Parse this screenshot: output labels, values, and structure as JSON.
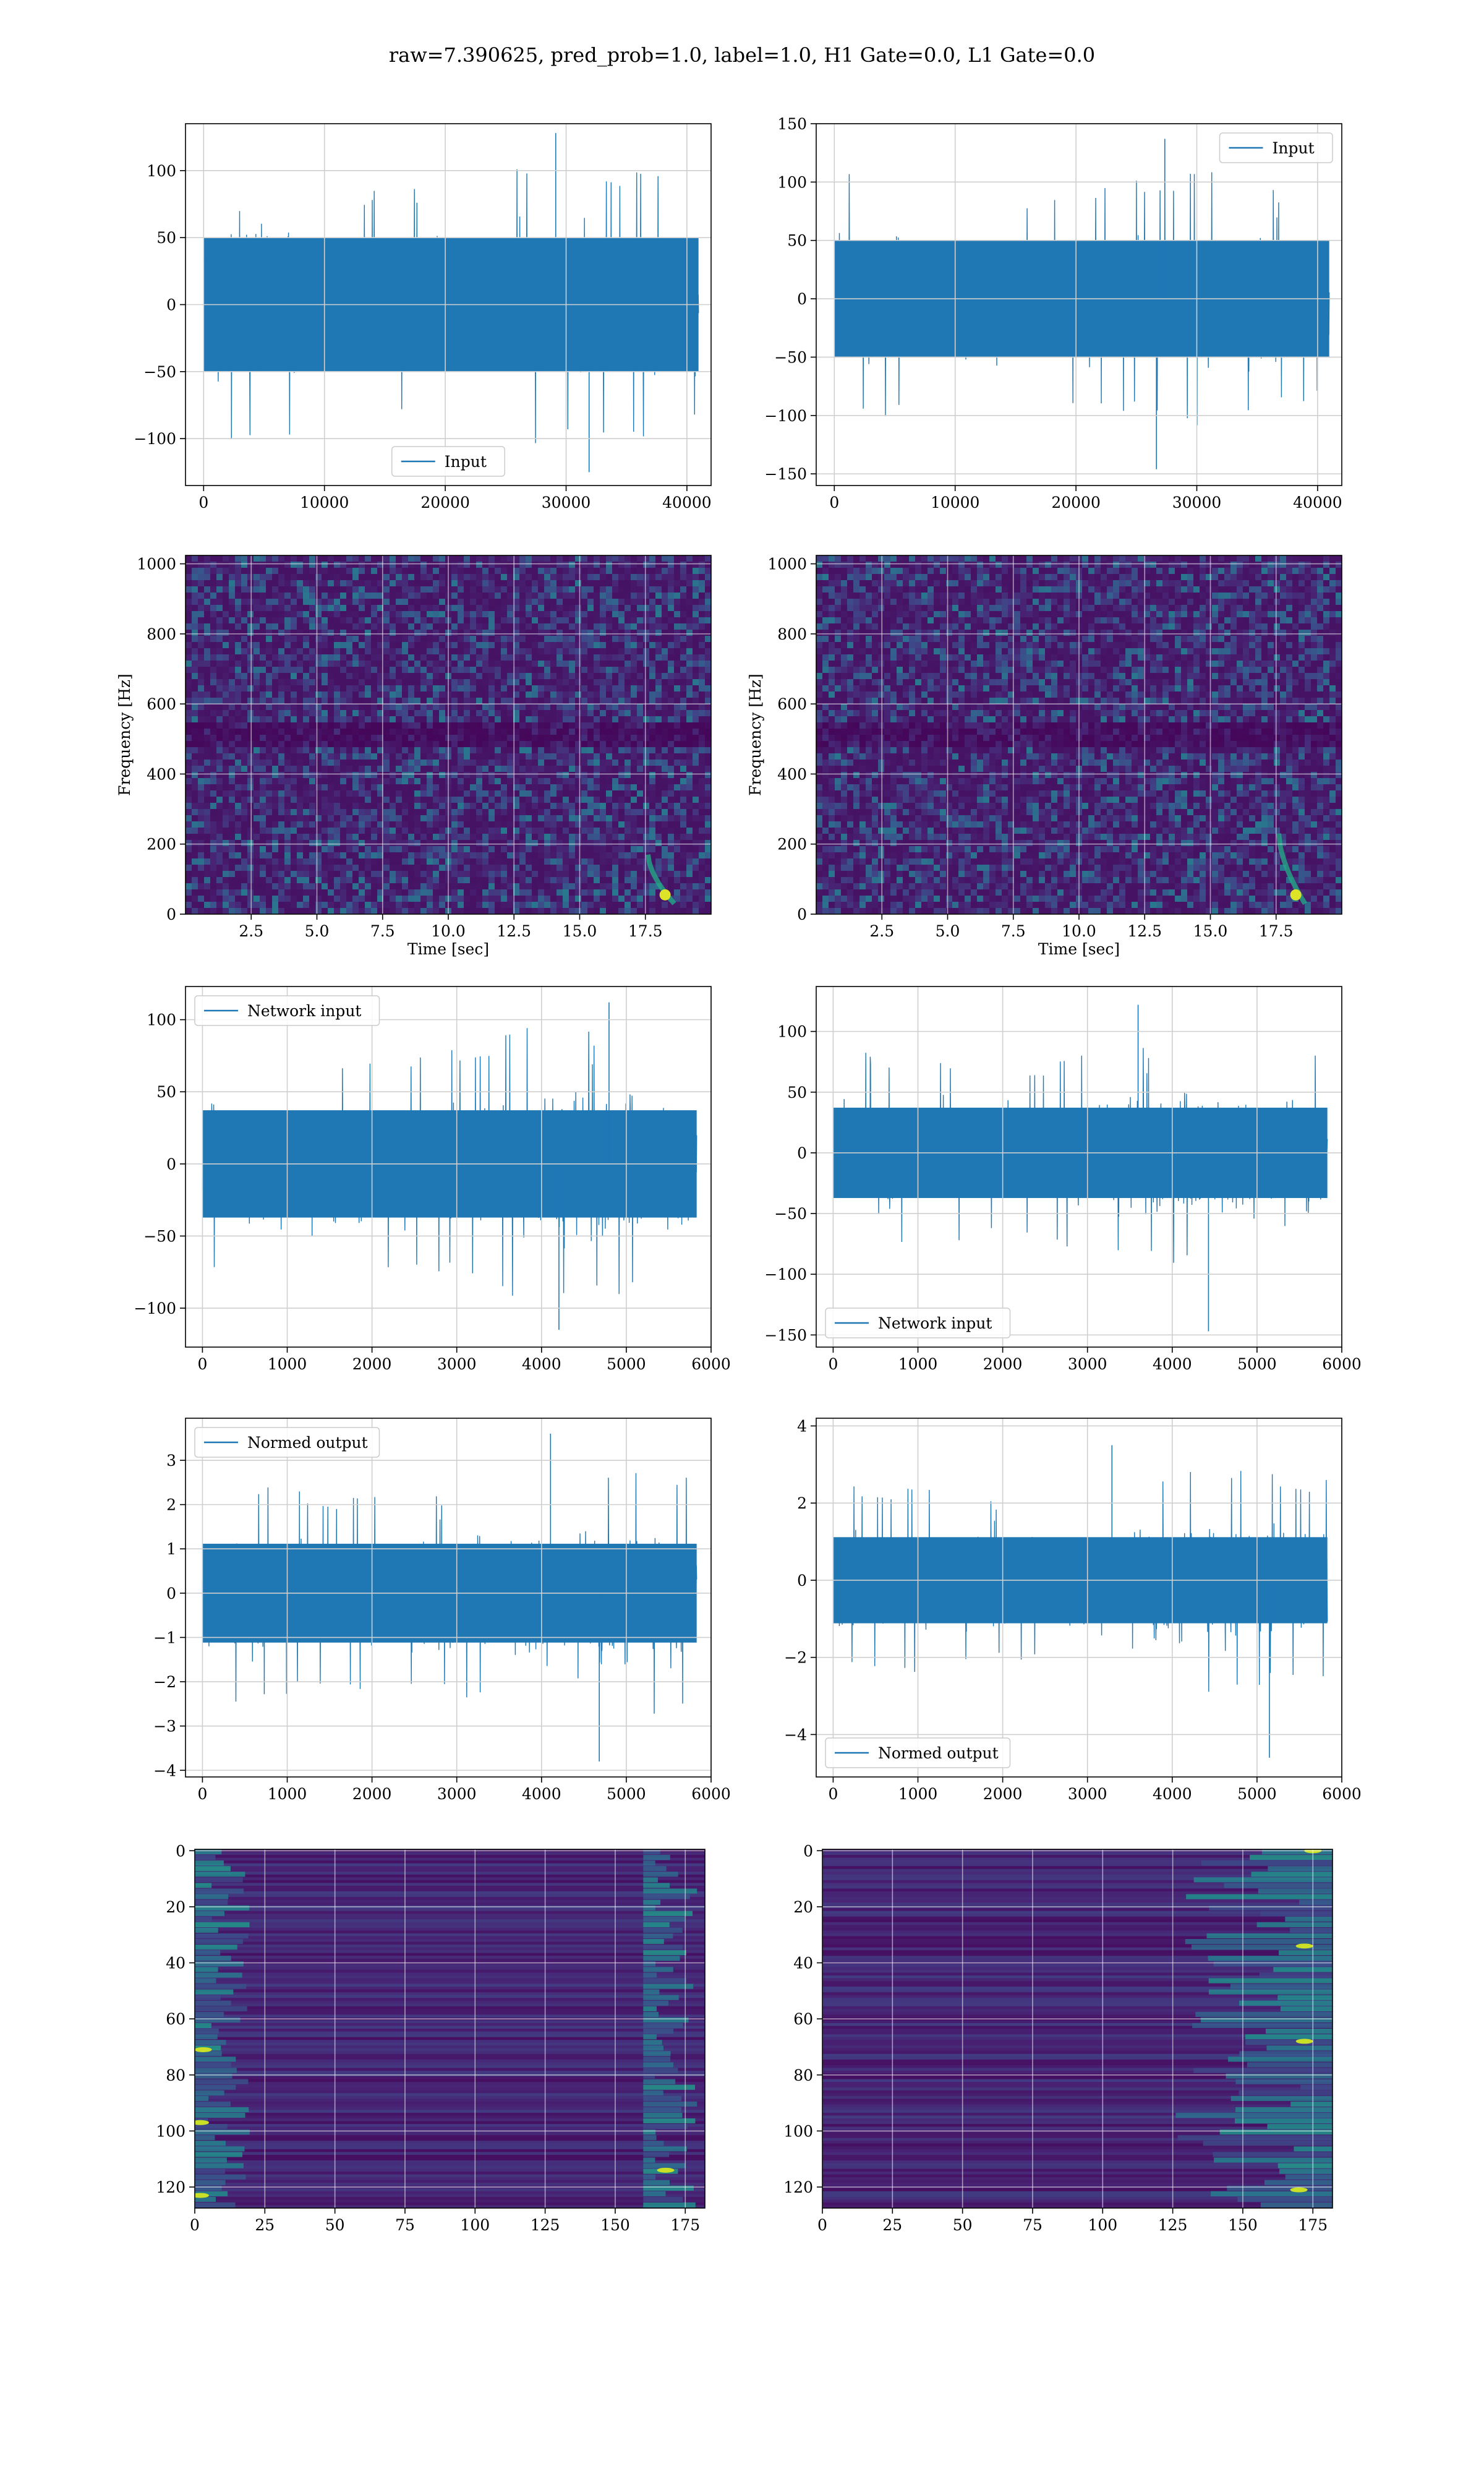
{
  "title": "raw=7.390625, pred_prob=1.0, label=1.0, H1 Gate=0.0, L1 Gate=0.0",
  "colors": {
    "series": "#1f77b4",
    "grid": "#cfcfcf",
    "viridis_bg": "#3b1d6b"
  },
  "chart_data": [
    {
      "type": "line",
      "panel": "row1-left",
      "series": [
        {
          "name": "Input"
        }
      ],
      "legend": "lower-center",
      "xlim": [
        -1500,
        42000
      ],
      "ylim": [
        -135,
        135
      ],
      "xticks": [
        0,
        10000,
        20000,
        30000,
        40000
      ],
      "yticks": [
        -100,
        -50,
        0,
        50,
        100
      ],
      "x_range": [
        0,
        40960
      ],
      "envelope": {
        "typical": 80,
        "peak_max": 128,
        "peak_min": -125
      },
      "grid": true
    },
    {
      "type": "line",
      "panel": "row1-right",
      "series": [
        {
          "name": "Input"
        }
      ],
      "legend": "upper-right",
      "xlim": [
        -1500,
        42000
      ],
      "ylim": [
        -160,
        150
      ],
      "xticks": [
        0,
        10000,
        20000,
        30000,
        40000
      ],
      "yticks": [
        -150,
        -100,
        -50,
        0,
        50,
        100,
        150
      ],
      "x_range": [
        0,
        40960
      ],
      "envelope": {
        "typical": 80,
        "peak_max": 137,
        "peak_min": -146
      },
      "grid": true
    },
    {
      "type": "heatmap",
      "panel": "row2-left",
      "xlabel": "Time [sec]",
      "ylabel": "Frequency [Hz]",
      "xlim": [
        0,
        20
      ],
      "ylim": [
        0,
        1024
      ],
      "xticks": [
        2.5,
        5.0,
        7.5,
        10.0,
        12.5,
        15.0,
        17.5
      ],
      "yticks": [
        0,
        200,
        400,
        600,
        800,
        1000
      ],
      "colormap": "viridis",
      "grid": true,
      "features": {
        "chirp_time": [
          17.6,
          18.6
        ],
        "chirp_freq": [
          30,
          170
        ]
      }
    },
    {
      "type": "heatmap",
      "panel": "row2-right",
      "xlabel": "Time [sec]",
      "ylabel": "Frequency [Hz]",
      "xlim": [
        0,
        20
      ],
      "ylim": [
        0,
        1024
      ],
      "xticks": [
        2.5,
        5.0,
        7.5,
        10.0,
        12.5,
        15.0,
        17.5
      ],
      "yticks": [
        0,
        200,
        400,
        600,
        800,
        1000
      ],
      "colormap": "viridis",
      "grid": true,
      "features": {
        "chirp_time": [
          17.6,
          18.6
        ],
        "chirp_freq": [
          30,
          230
        ]
      }
    },
    {
      "type": "line",
      "panel": "row3-left",
      "series": [
        {
          "name": "Network input"
        }
      ],
      "legend": "upper-left",
      "xlim": [
        -200,
        6000
      ],
      "ylim": [
        -127,
        123
      ],
      "xticks": [
        0,
        1000,
        2000,
        3000,
        4000,
        5000,
        6000
      ],
      "yticks": [
        -100,
        -50,
        0,
        50,
        100
      ],
      "x_range": [
        0,
        5830
      ],
      "envelope": {
        "typical": 60,
        "peak_max": 112,
        "peak_min": -115
      },
      "grid": true
    },
    {
      "type": "line",
      "panel": "row3-right",
      "series": [
        {
          "name": "Network input"
        }
      ],
      "legend": "lower-left",
      "xlim": [
        -200,
        6000
      ],
      "ylim": [
        -160,
        137
      ],
      "xticks": [
        0,
        1000,
        2000,
        3000,
        4000,
        5000,
        6000
      ],
      "yticks": [
        -150,
        -100,
        -50,
        0,
        50,
        100
      ],
      "x_range": [
        0,
        5830
      ],
      "envelope": {
        "typical": 60,
        "peak_max": 122,
        "peak_min": -147
      },
      "grid": true
    },
    {
      "type": "line",
      "panel": "row4-left",
      "series": [
        {
          "name": "Normed output"
        }
      ],
      "legend": "upper-left",
      "xlim": [
        -200,
        6000
      ],
      "ylim": [
        -4.15,
        3.95
      ],
      "xticks": [
        0,
        1000,
        2000,
        3000,
        4000,
        5000,
        6000
      ],
      "yticks": [
        -4,
        -3,
        -2,
        -1,
        0,
        1,
        2,
        3
      ],
      "x_range": [
        0,
        5830
      ],
      "envelope": {
        "typical": 1.8,
        "peak_max": 3.6,
        "peak_min": -3.8
      },
      "grid": true
    },
    {
      "type": "line",
      "panel": "row4-right",
      "series": [
        {
          "name": "Normed output"
        }
      ],
      "legend": "lower-left",
      "xlim": [
        -200,
        6000
      ],
      "ylim": [
        -5.1,
        4.2
      ],
      "xticks": [
        0,
        1000,
        2000,
        3000,
        4000,
        5000,
        6000
      ],
      "yticks": [
        -4,
        -2,
        0,
        2,
        4
      ],
      "x_range": [
        0,
        5830
      ],
      "envelope": {
        "typical": 1.8,
        "peak_max": 3.5,
        "peak_min": -4.6
      },
      "grid": true
    },
    {
      "type": "heatmap",
      "panel": "row5-left",
      "xlim": [
        0,
        182
      ],
      "ylim": [
        127.5,
        -0.5
      ],
      "y_inverted": true,
      "xticks": [
        0,
        25,
        50,
        75,
        100,
        125,
        150,
        175
      ],
      "yticks": [
        0,
        20,
        40,
        60,
        80,
        100,
        120
      ],
      "colormap": "viridis",
      "grid": true,
      "features": {
        "bright_columns": [
          [
            0,
            20
          ],
          [
            160,
            180
          ]
        ],
        "hot_spots": [
          [
            2,
            97
          ],
          [
            3,
            71
          ],
          [
            168,
            114
          ],
          [
            2,
            123
          ]
        ]
      }
    },
    {
      "type": "heatmap",
      "panel": "row5-right",
      "xlim": [
        0,
        182
      ],
      "ylim": [
        127.5,
        -0.5
      ],
      "y_inverted": true,
      "xticks": [
        0,
        25,
        50,
        75,
        100,
        125,
        150,
        175
      ],
      "yticks": [
        0,
        20,
        40,
        60,
        80,
        100,
        120
      ],
      "colormap": "viridis",
      "grid": true,
      "features": {
        "bright_columns": [
          [
            125,
            182
          ]
        ],
        "hot_spots": [
          [
            172,
            34
          ],
          [
            175,
            0
          ],
          [
            170,
            121
          ],
          [
            172,
            68
          ]
        ]
      }
    }
  ]
}
